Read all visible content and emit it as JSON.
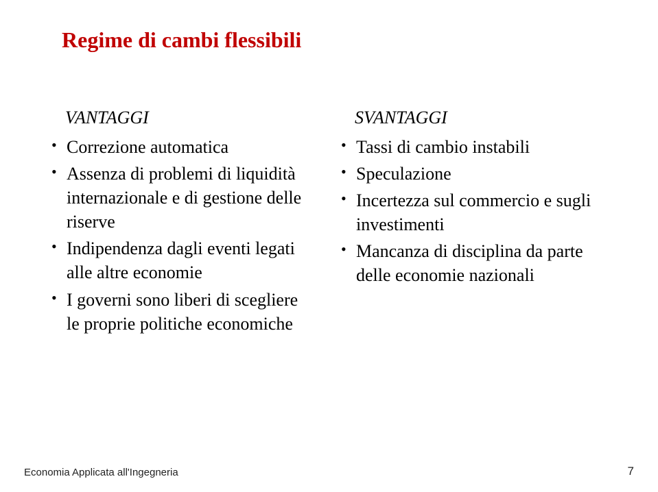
{
  "title": "Regime di cambi flessibili",
  "left": {
    "header": "VANTAGGI",
    "items": [
      "Correzione automatica",
      "Assenza di problemi di liquidità internazionale e di gestione delle riserve",
      "Indipendenza dagli eventi legati alle altre economie",
      "I governi sono liberi di scegliere le proprie politiche economiche"
    ]
  },
  "right": {
    "header": "SVANTAGGI",
    "items": [
      "Tassi di cambio instabili",
      "Speculazione",
      "Incertezza sul commercio e sugli investimenti",
      "Mancanza di disciplina da parte delle economie nazionali"
    ]
  },
  "footer": "Economia Applicata all'Ingegneria",
  "page": "7",
  "colors": {
    "title": "#c00000",
    "text": "#000000",
    "background": "#ffffff"
  }
}
